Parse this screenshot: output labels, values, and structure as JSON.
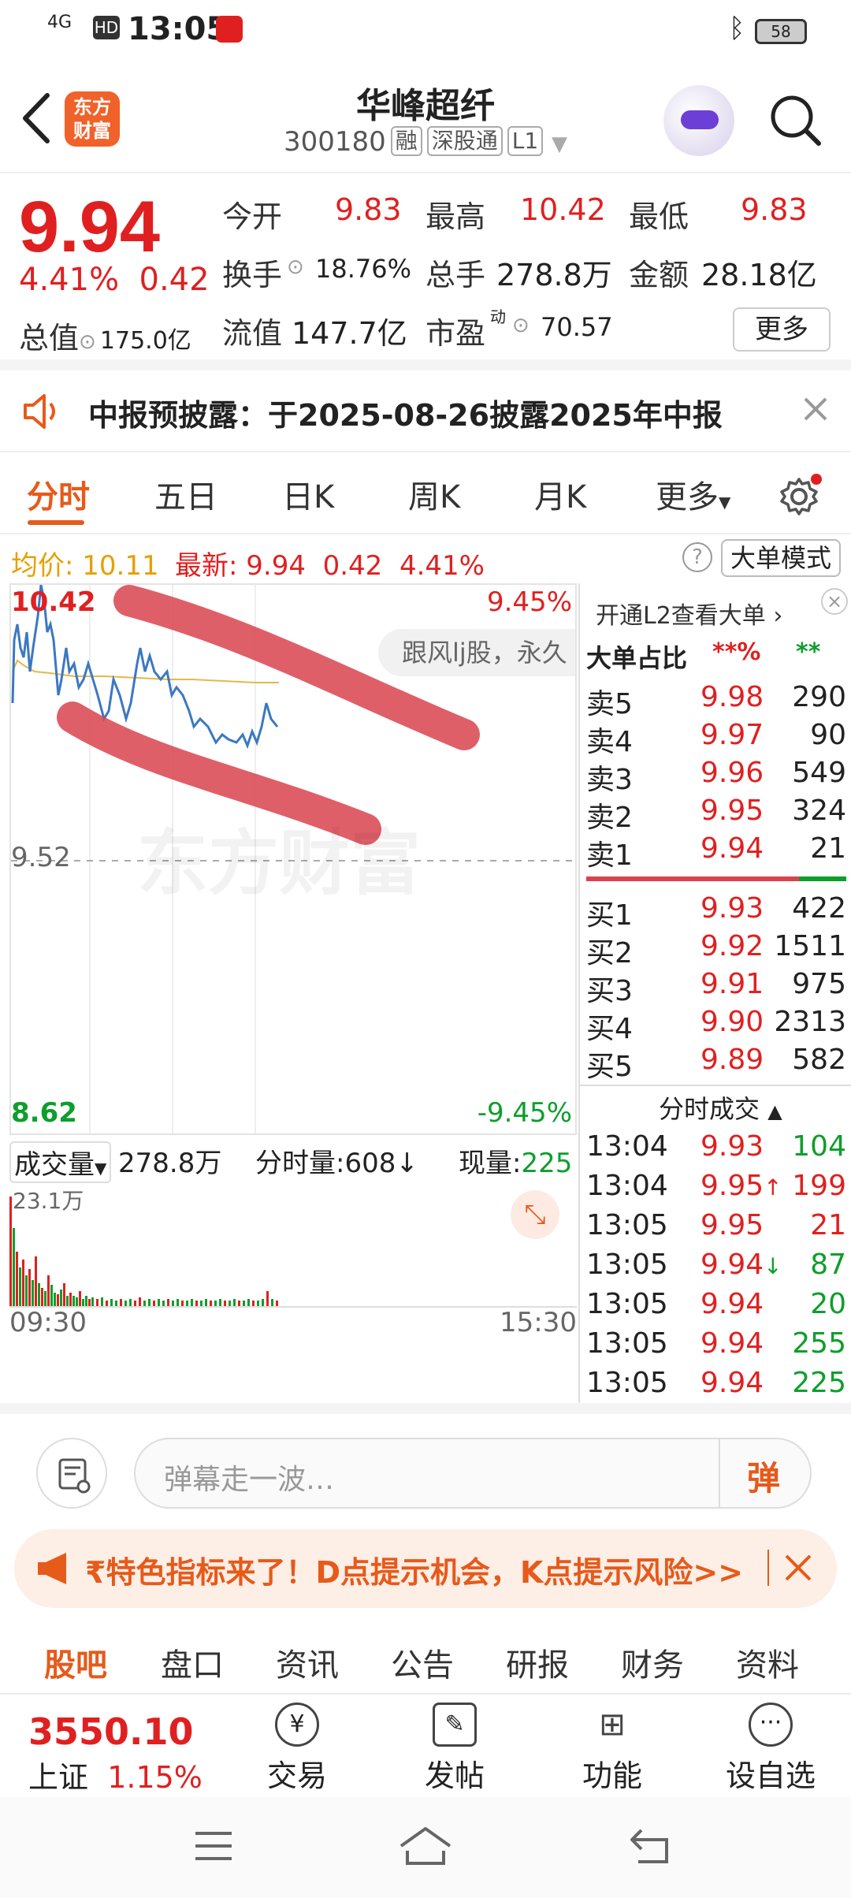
{
  "status": {
    "time": "13:05",
    "network": "4G",
    "hd": "HD",
    "battery": "58"
  },
  "header": {
    "brand_line1": "东方",
    "brand_line2": "财富",
    "title": "华峰超纤",
    "code": "300180",
    "tags": [
      "融",
      "深股通",
      "L1"
    ]
  },
  "quote": {
    "price": "9.94",
    "change_pct": "4.41%",
    "change": "0.42",
    "open_label": "今开",
    "open": "9.83",
    "high_label": "最高",
    "high": "10.42",
    "low_label": "最低",
    "low": "9.83",
    "turnover_label": "换手",
    "turnover": "18.76%",
    "volume_label": "总手",
    "volume": "278.8万",
    "amount_label": "金额",
    "amount": "28.18亿",
    "mktcap_label": "总值",
    "mktcap": "175.0亿",
    "float_label": "流值",
    "float": "147.7亿",
    "pe_label": "市盈",
    "pe_sup": "动",
    "pe": "70.57",
    "more": "更多"
  },
  "notice": {
    "text": "中报预披露：于2025-08-26披露2025年中报"
  },
  "tabs": [
    "分时",
    "五日",
    "日K",
    "周K",
    "月K",
    "更多"
  ],
  "avgline": {
    "avg_label": "均价:",
    "avg": "10.11",
    "latest_label": "最新:",
    "latest": "9.94",
    "chg": "0.42",
    "pct": "4.41%",
    "big_order_mode": "大单模式"
  },
  "chart": {
    "y_top": "10.42",
    "y_top_pct": "9.45%",
    "y_mid": "9.52",
    "y_bot": "8.62",
    "y_bot_pct": "-9.45%",
    "danmaku": "跟风lj股，永久",
    "watermark": "东方财富"
  },
  "volume_bar": {
    "label": "成交量",
    "total": "278.8万",
    "minute_label": "分时量:608",
    "now_label": "现量:",
    "now": "225",
    "max": "23.1万",
    "start": "09:30",
    "end": "15:30"
  },
  "order_book": {
    "l2_link": "开通L2查看大单",
    "big_ratio_label": "大单占比",
    "big_ratio_red": "**%",
    "big_ratio_green": "**",
    "asks": [
      {
        "label": "卖5",
        "price": "9.98",
        "qty": "290"
      },
      {
        "label": "卖4",
        "price": "9.97",
        "qty": "90"
      },
      {
        "label": "卖3",
        "price": "9.96",
        "qty": "549"
      },
      {
        "label": "卖2",
        "price": "9.95",
        "qty": "324"
      },
      {
        "label": "卖1",
        "price": "9.94",
        "qty": "21"
      }
    ],
    "bids": [
      {
        "label": "买1",
        "price": "9.93",
        "qty": "422"
      },
      {
        "label": "买2",
        "price": "9.92",
        "qty": "1511"
      },
      {
        "label": "买3",
        "price": "9.91",
        "qty": "975"
      },
      {
        "label": "买4",
        "price": "9.90",
        "qty": "2313"
      },
      {
        "label": "买5",
        "price": "9.89",
        "qty": "582"
      }
    ],
    "ticks_title": "分时成交",
    "ticks": [
      {
        "time": "13:04",
        "price": "9.93",
        "arrow": "",
        "qty": "104"
      },
      {
        "time": "13:04",
        "price": "9.95",
        "arrow": "↑",
        "qty": "199"
      },
      {
        "time": "13:05",
        "price": "9.95",
        "arrow": "",
        "qty": "21"
      },
      {
        "time": "13:05",
        "price": "9.94",
        "arrow": "↓",
        "qty": "87"
      },
      {
        "time": "13:05",
        "price": "9.94",
        "arrow": "",
        "qty": "20"
      },
      {
        "time": "13:05",
        "price": "9.94",
        "arrow": "",
        "qty": "255"
      },
      {
        "time": "13:05",
        "price": "9.94",
        "arrow": "",
        "qty": "225"
      }
    ]
  },
  "danmu": {
    "placeholder": "弹幕走一波…",
    "btn": "弹"
  },
  "banner": {
    "text": "₹特色指标来了！D点提示机会，K点提示风险>>"
  },
  "subtabs": [
    "股吧",
    "盘口",
    "资讯",
    "公告",
    "研报",
    "财务",
    "资料"
  ],
  "bottom": {
    "index_value": "3550.10",
    "index_name": "上证",
    "index_pct": "1.15%",
    "trade": "交易",
    "post": "发帖",
    "func": "功能",
    "watch": "设自选"
  }
}
